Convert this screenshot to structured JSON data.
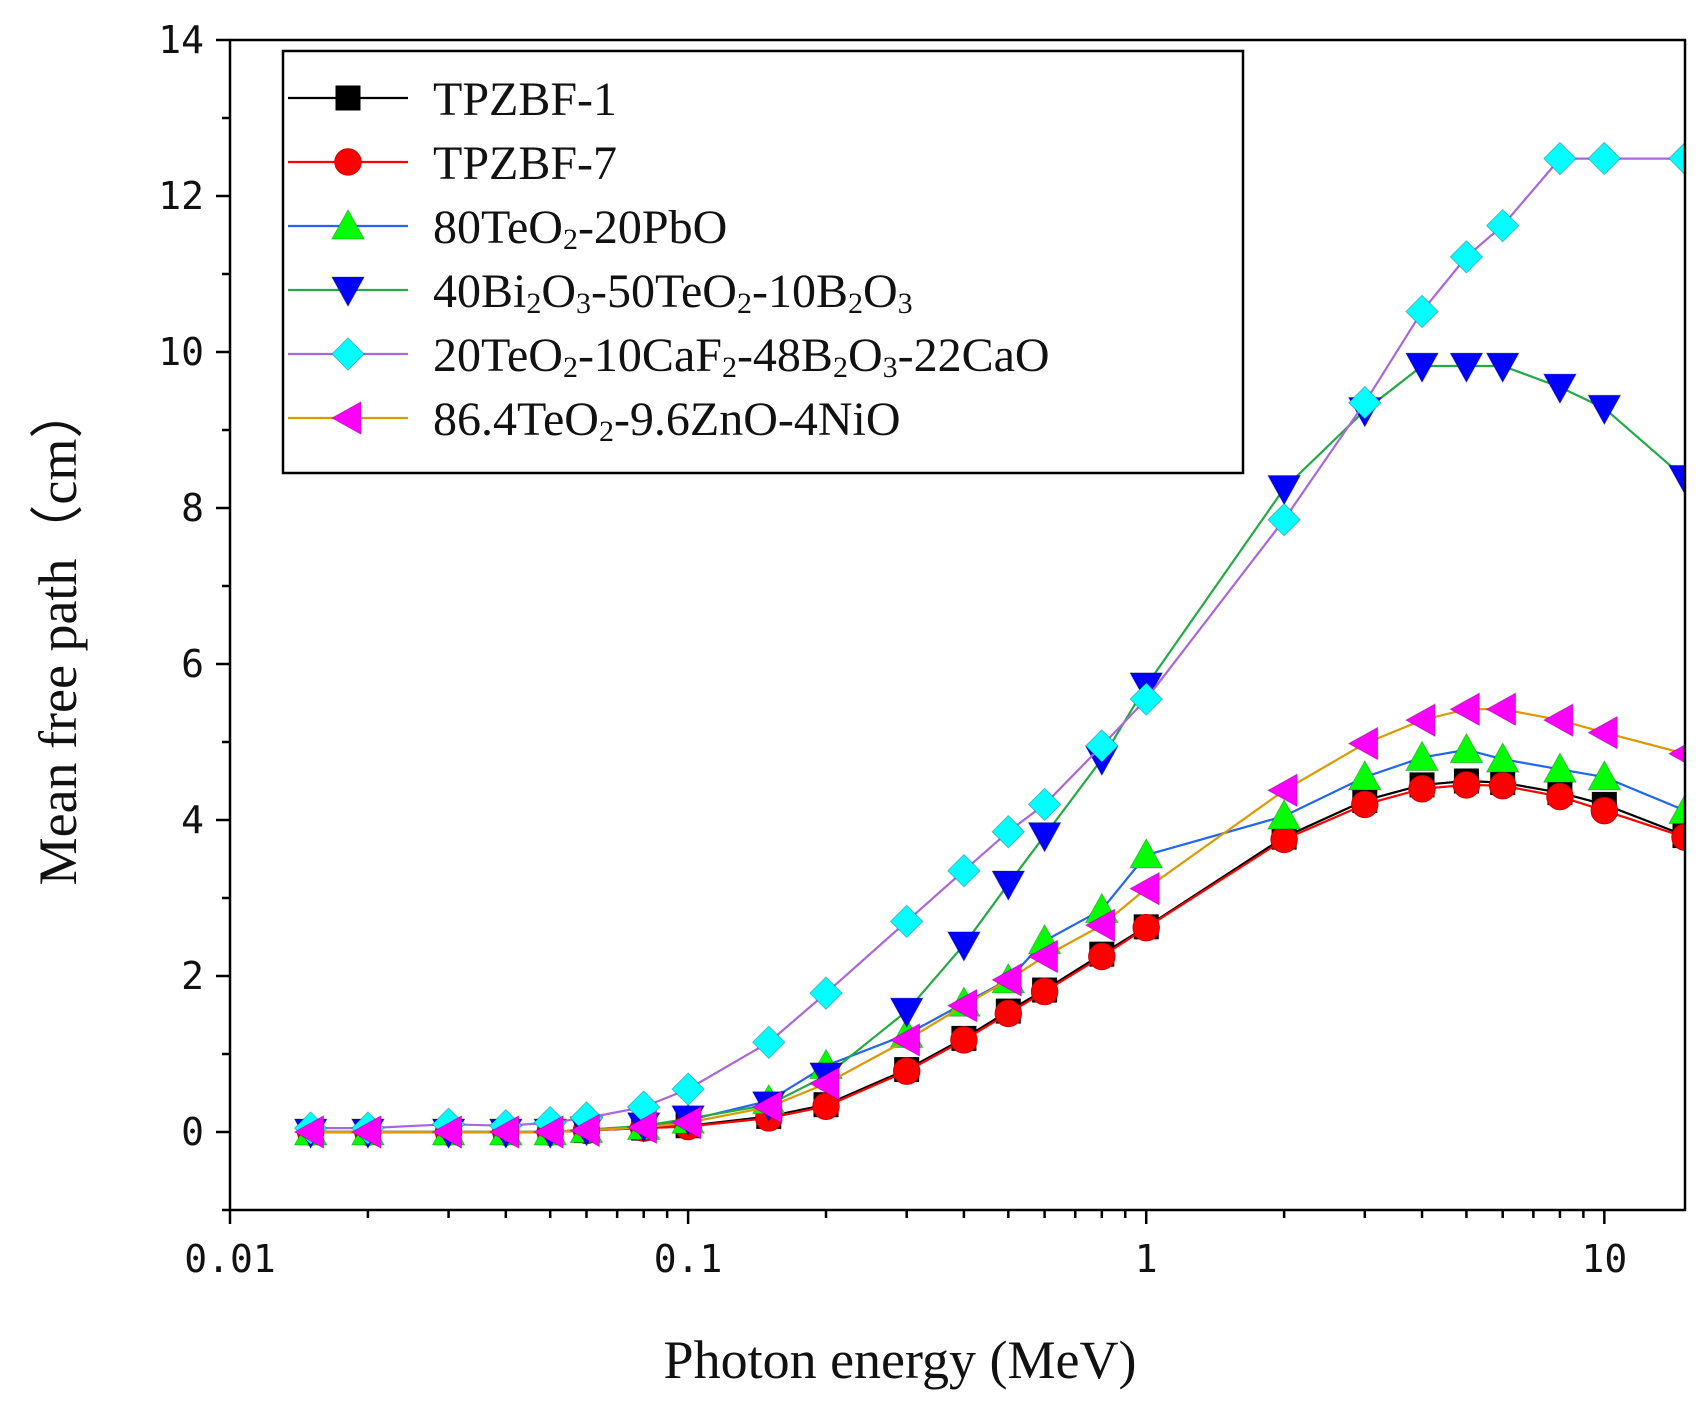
{
  "chart_data": {
    "type": "line",
    "xscale": "log",
    "xlim": [
      0.01,
      15
    ],
    "ylim": [
      -1,
      14
    ],
    "xlabel": "Photon energy (MeV)",
    "ylabel": "Mean free path（cm）",
    "xticks": [
      {
        "value": 0.01,
        "label": "0.01"
      },
      {
        "value": 0.1,
        "label": "0.1"
      },
      {
        "value": 1,
        "label": "1"
      },
      {
        "value": 10,
        "label": "10"
      }
    ],
    "yticks": [
      {
        "value": 0,
        "label": "0"
      },
      {
        "value": 2,
        "label": "2"
      },
      {
        "value": 4,
        "label": "4"
      },
      {
        "value": 6,
        "label": "6"
      },
      {
        "value": 8,
        "label": "8"
      },
      {
        "value": 10,
        "label": "10"
      },
      {
        "value": 12,
        "label": "12"
      },
      {
        "value": 14,
        "label": "14"
      }
    ],
    "legend_position": "top-left",
    "x": [
      0.015,
      0.02,
      0.03,
      0.04,
      0.05,
      0.06,
      0.08,
      0.1,
      0.15,
      0.2,
      0.3,
      0.4,
      0.5,
      0.6,
      0.8,
      1,
      2,
      3,
      4,
      5,
      6,
      8,
      10,
      15
    ],
    "series": [
      {
        "name": "TPZBF-1",
        "legend": [
          {
            "t": "TPZBF-1"
          }
        ],
        "marker": "square",
        "line_color": "#000000",
        "marker_color": "#000000",
        "values": [
          0.0,
          0.0,
          0.0,
          0.0,
          0.0,
          0.02,
          0.05,
          0.08,
          0.2,
          0.35,
          0.8,
          1.2,
          1.55,
          1.82,
          2.28,
          2.63,
          3.78,
          4.25,
          4.45,
          4.5,
          4.48,
          4.35,
          4.2,
          3.8
        ]
      },
      {
        "name": "TPZBF-7",
        "legend": [
          {
            "t": "TPZBF-7"
          }
        ],
        "marker": "circle",
        "line_color": "#ff0000",
        "marker_color": "#ff0000",
        "values": [
          0.0,
          0.0,
          0.0,
          0.0,
          0.0,
          0.02,
          0.05,
          0.07,
          0.18,
          0.33,
          0.78,
          1.18,
          1.52,
          1.8,
          2.25,
          2.62,
          3.75,
          4.2,
          4.4,
          4.45,
          4.44,
          4.3,
          4.12,
          3.78
        ]
      },
      {
        "name": "80TeO2-20PbO",
        "legend": [
          {
            "t": "80TeO"
          },
          {
            "t": "2",
            "sub": true
          },
          {
            "t": "-20PbO"
          }
        ],
        "marker": "triangle-up",
        "line_color": "#2266ee",
        "marker_color": "#00ff00",
        "values": [
          0.0,
          0.0,
          0.0,
          0.0,
          0.0,
          0.03,
          0.07,
          0.15,
          0.4,
          0.85,
          1.25,
          1.65,
          1.95,
          2.45,
          2.85,
          3.55,
          4.05,
          4.55,
          4.8,
          4.9,
          4.78,
          4.65,
          4.55,
          4.12
        ]
      },
      {
        "name": "40Bi2O3-50TeO2-10B2O3",
        "legend": [
          {
            "t": "40Bi"
          },
          {
            "t": "2",
            "sub": true
          },
          {
            "t": "O"
          },
          {
            "t": "3",
            "sub": true
          },
          {
            "t": "-50TeO"
          },
          {
            "t": "2",
            "sub": true
          },
          {
            "t": "-10B"
          },
          {
            "t": "2",
            "sub": true
          },
          {
            "t": "O"
          },
          {
            "t": "3",
            "sub": true
          }
        ],
        "marker": "triangle-down",
        "line_color": "#22aa44",
        "marker_color": "#0000ff",
        "values": [
          0.0,
          0.0,
          0.0,
          0.0,
          0.0,
          0.03,
          0.08,
          0.17,
          0.35,
          0.72,
          1.55,
          2.4,
          3.18,
          3.8,
          4.78,
          5.72,
          8.25,
          9.25,
          9.82,
          9.82,
          9.82,
          9.55,
          9.28,
          8.38
        ]
      },
      {
        "name": "20TeO2-10CaF2-48B2O3-22CaO",
        "legend": [
          {
            "t": "20TeO"
          },
          {
            "t": "2",
            "sub": true
          },
          {
            "t": "-10CaF"
          },
          {
            "t": "2",
            "sub": true
          },
          {
            "t": "-48B"
          },
          {
            "t": "2",
            "sub": true
          },
          {
            "t": "O"
          },
          {
            "t": "3",
            "sub": true
          },
          {
            "t": "-22CaO"
          }
        ],
        "marker": "diamond",
        "line_color": "#aa66dd",
        "marker_color": "#00ffff",
        "values": [
          0.05,
          0.05,
          0.1,
          0.08,
          0.12,
          0.18,
          0.32,
          0.55,
          1.15,
          1.78,
          2.7,
          3.35,
          3.85,
          4.2,
          4.95,
          5.55,
          7.85,
          9.35,
          10.52,
          11.22,
          11.62,
          12.48,
          12.48,
          12.48
        ]
      },
      {
        "name": "86.4TeO2-9.6ZnO-4NiO",
        "legend": [
          {
            "t": "86.4TeO"
          },
          {
            "t": "2",
            "sub": true
          },
          {
            "t": "-9.6ZnO-4NiO"
          }
        ],
        "marker": "triangle-left",
        "line_color": "#dd9900",
        "marker_color": "#ff00ff",
        "values": [
          0.0,
          0.0,
          0.0,
          0.0,
          0.0,
          0.02,
          0.06,
          0.12,
          0.32,
          0.62,
          1.18,
          1.62,
          1.95,
          2.25,
          2.65,
          3.12,
          4.38,
          4.98,
          5.28,
          5.42,
          5.42,
          5.28,
          5.12,
          4.85
        ]
      }
    ]
  }
}
